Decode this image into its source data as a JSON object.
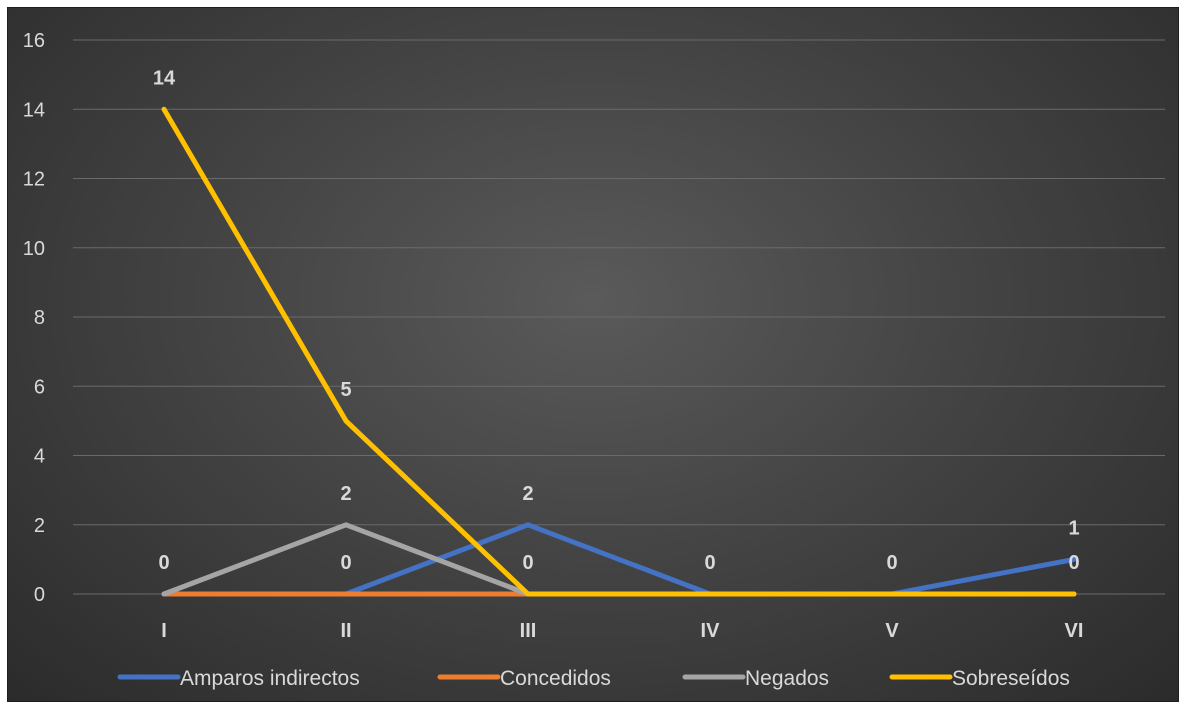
{
  "chart_data": {
    "type": "line",
    "title": "",
    "xlabel": "",
    "ylabel": "",
    "categories": [
      "I",
      "II",
      "III",
      "IV",
      "V",
      "VI"
    ],
    "ylim": [
      0,
      16
    ],
    "yticks": [
      0,
      2,
      4,
      6,
      8,
      10,
      12,
      14,
      16
    ],
    "grid": true,
    "legend_position": "bottom",
    "background": "#3a3a3a",
    "series": [
      {
        "name": "Amparos indirectos",
        "color": "#4472c4",
        "values": [
          0,
          0,
          2,
          0,
          0,
          1
        ]
      },
      {
        "name": "Concedidos",
        "color": "#ed7d31",
        "values": [
          0,
          0,
          0,
          0,
          0,
          0
        ]
      },
      {
        "name": "Negados",
        "color": "#a5a5a5",
        "values": [
          0,
          2,
          0,
          0,
          0,
          0
        ]
      },
      {
        "name": "Sobreseídos",
        "color": "#ffc000",
        "values": [
          14,
          5,
          0,
          0,
          0,
          0
        ]
      }
    ],
    "data_labels": [
      {
        "series": "Amparos indirectos",
        "index": 2,
        "text": "2"
      },
      {
        "series": "Amparos indirectos",
        "index": 5,
        "text": "1"
      },
      {
        "series": "Negados",
        "index": 1,
        "text": "2"
      },
      {
        "series": "Sobreseídos",
        "index": 0,
        "text": "14"
      },
      {
        "series": "Sobreseídos",
        "index": 1,
        "text": "5"
      },
      {
        "series": "Concedidos",
        "index": 0,
        "text": "0"
      },
      {
        "series": "Concedidos",
        "index": 1,
        "text": "0"
      },
      {
        "series": "Concedidos",
        "index": 2,
        "text": "0"
      },
      {
        "series": "Concedidos",
        "index": 3,
        "text": "0"
      },
      {
        "series": "Concedidos",
        "index": 4,
        "text": "0"
      },
      {
        "series": "Concedidos",
        "index": 5,
        "text": "0"
      }
    ]
  }
}
